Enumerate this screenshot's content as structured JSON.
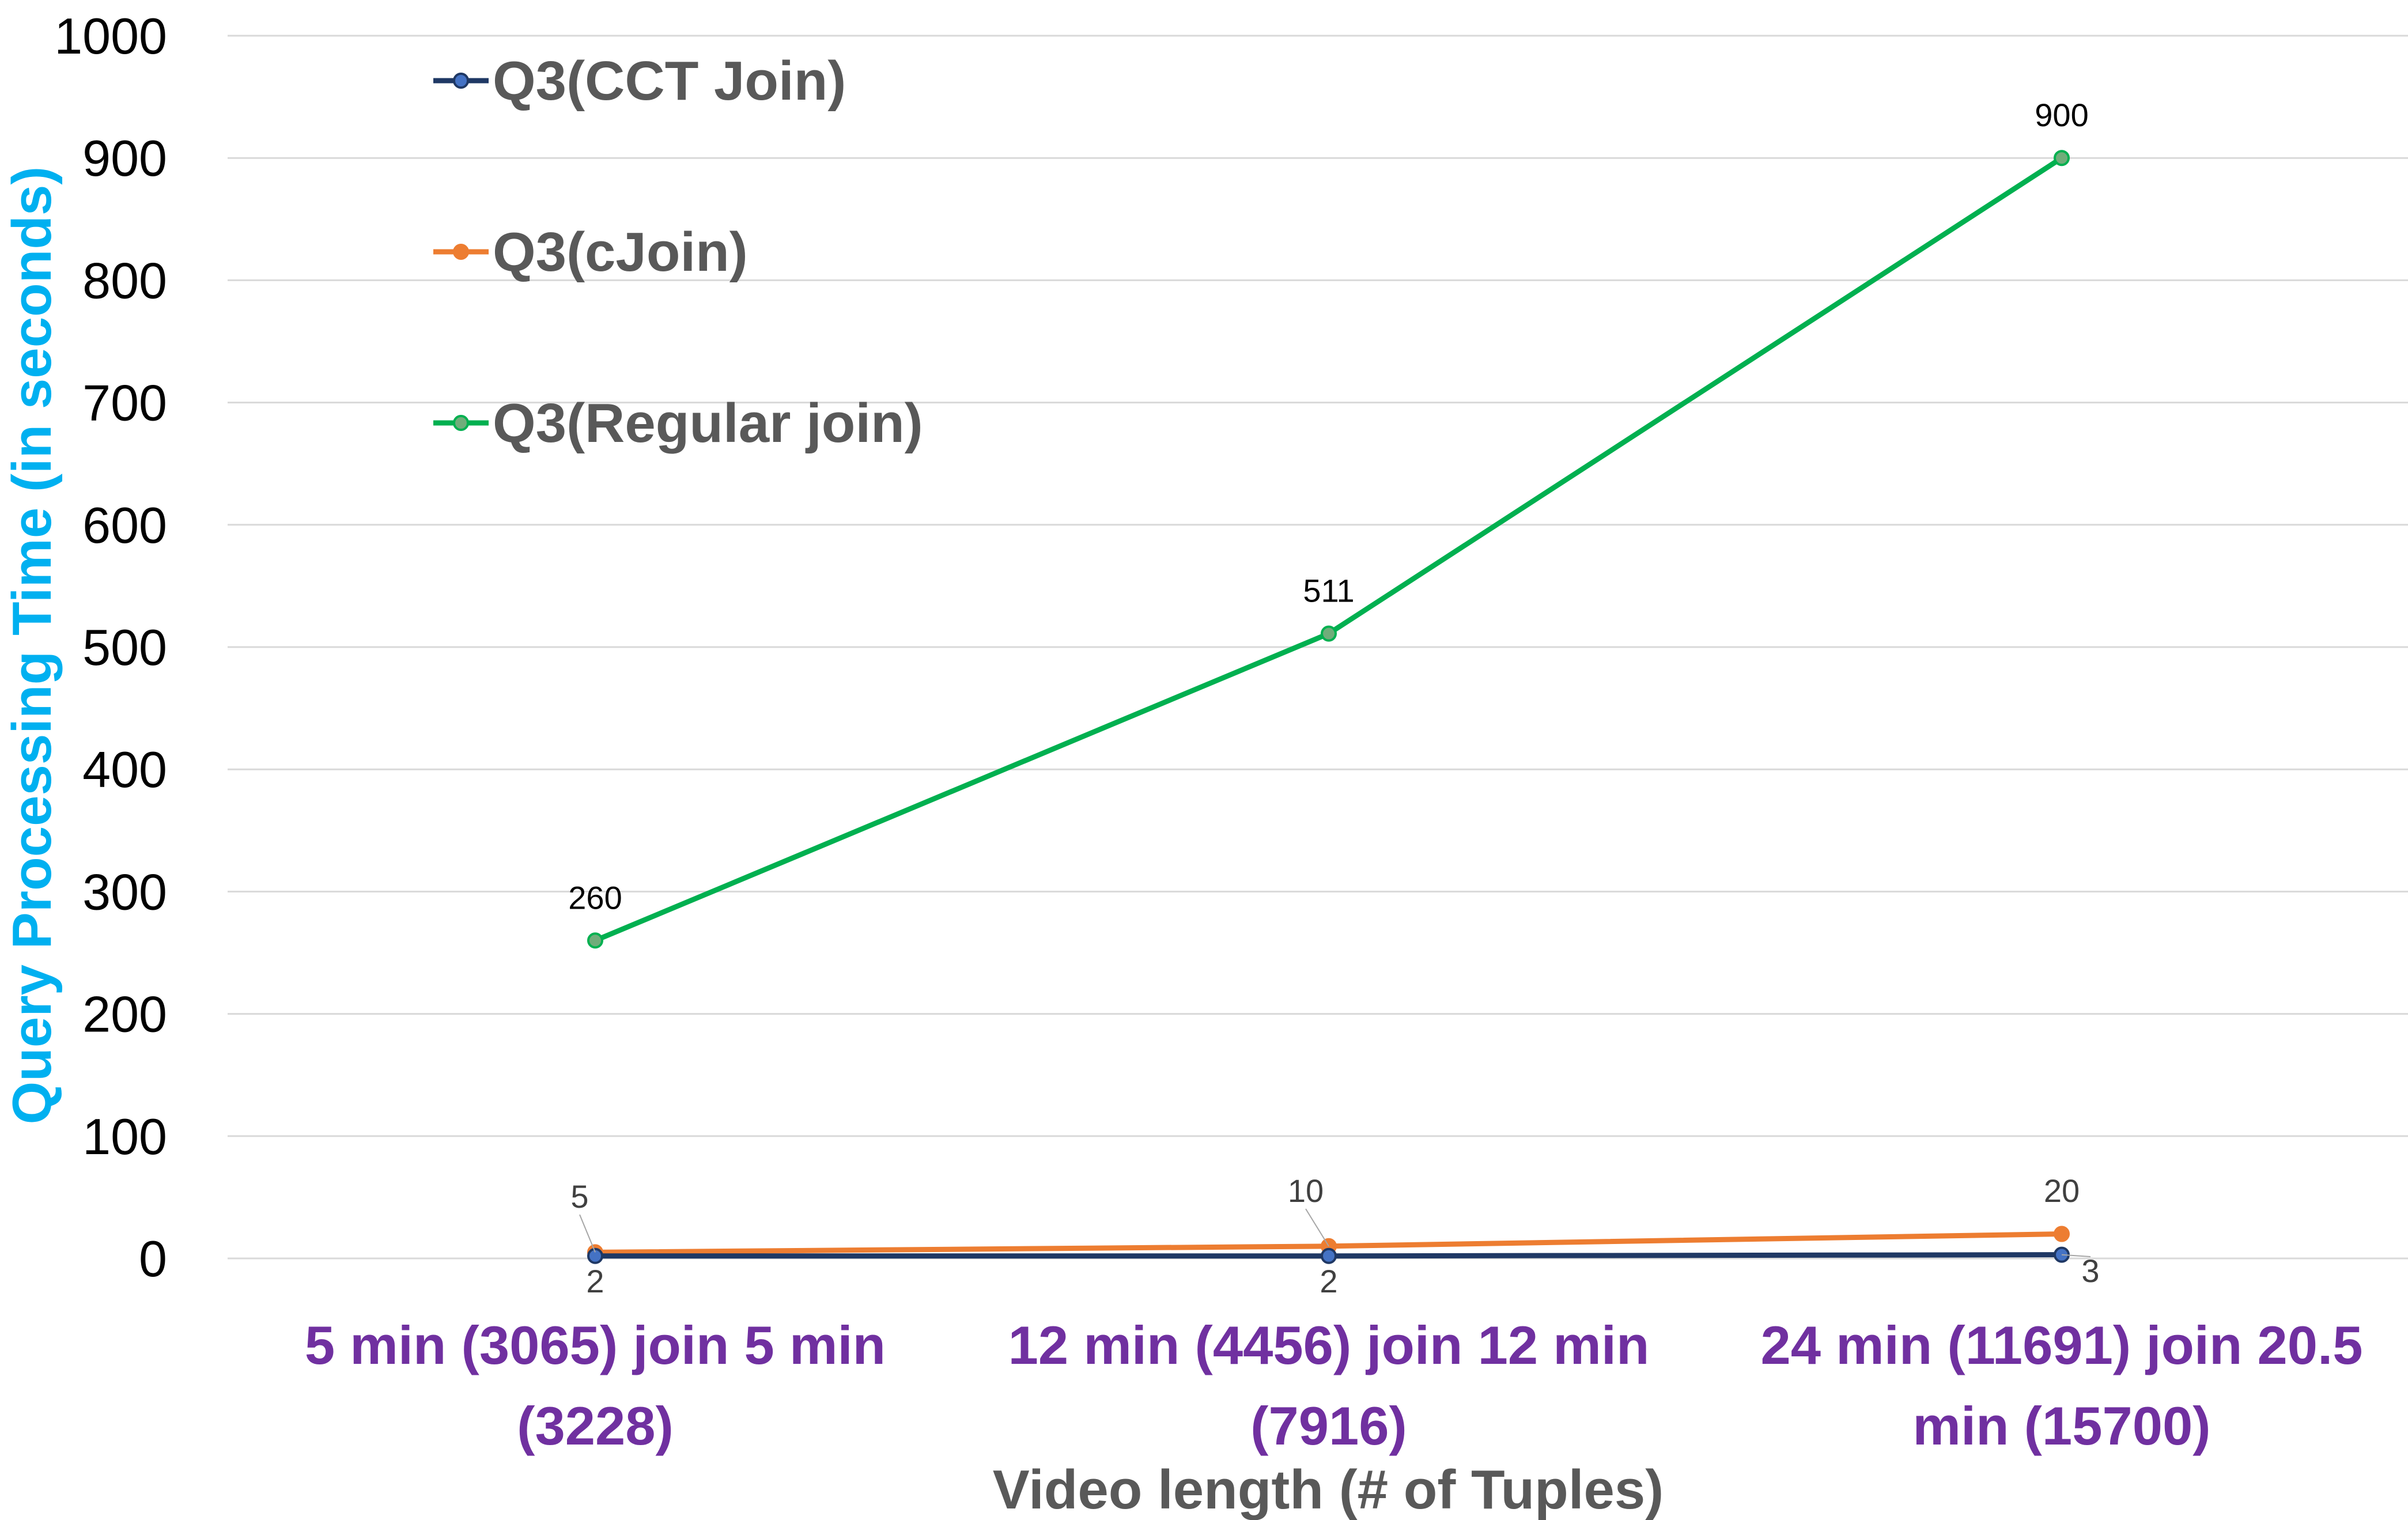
{
  "chart_data": {
    "type": "line",
    "title": "",
    "xlabel": "Video length (# of Tuples)",
    "ylabel": "Query Processing Time (in seconds)",
    "ylim": [
      0,
      1000
    ],
    "yticks": [
      0,
      100,
      200,
      300,
      400,
      500,
      600,
      700,
      800,
      900,
      1000
    ],
    "grid": true,
    "legend_position": "top-left",
    "categories": [
      [
        "5 min (3065) join 5 min",
        "(3228)"
      ],
      [
        "12 min (4456) join 12 min",
        "(7916)"
      ],
      [
        "24 min (11691) join 20.5",
        "min (15700)"
      ]
    ],
    "series": [
      {
        "name": "Q3(CCT Join)",
        "values": [
          2,
          2,
          3
        ],
        "labels": [
          "2",
          "2",
          "3"
        ],
        "color": "#1f3864",
        "marker_color": "#4472c4"
      },
      {
        "name": "Q3(cJoin)",
        "values": [
          5,
          10,
          20
        ],
        "labels": [
          "5",
          "10",
          "20"
        ],
        "color": "#ed7d31",
        "marker_color": "#ed7d31"
      },
      {
        "name": "Q3(Regular join)",
        "values": [
          260,
          511,
          900
        ],
        "labels": [
          "260",
          "511",
          "900"
        ],
        "color": "#00b050",
        "marker_color": "#70ad7a"
      }
    ]
  }
}
